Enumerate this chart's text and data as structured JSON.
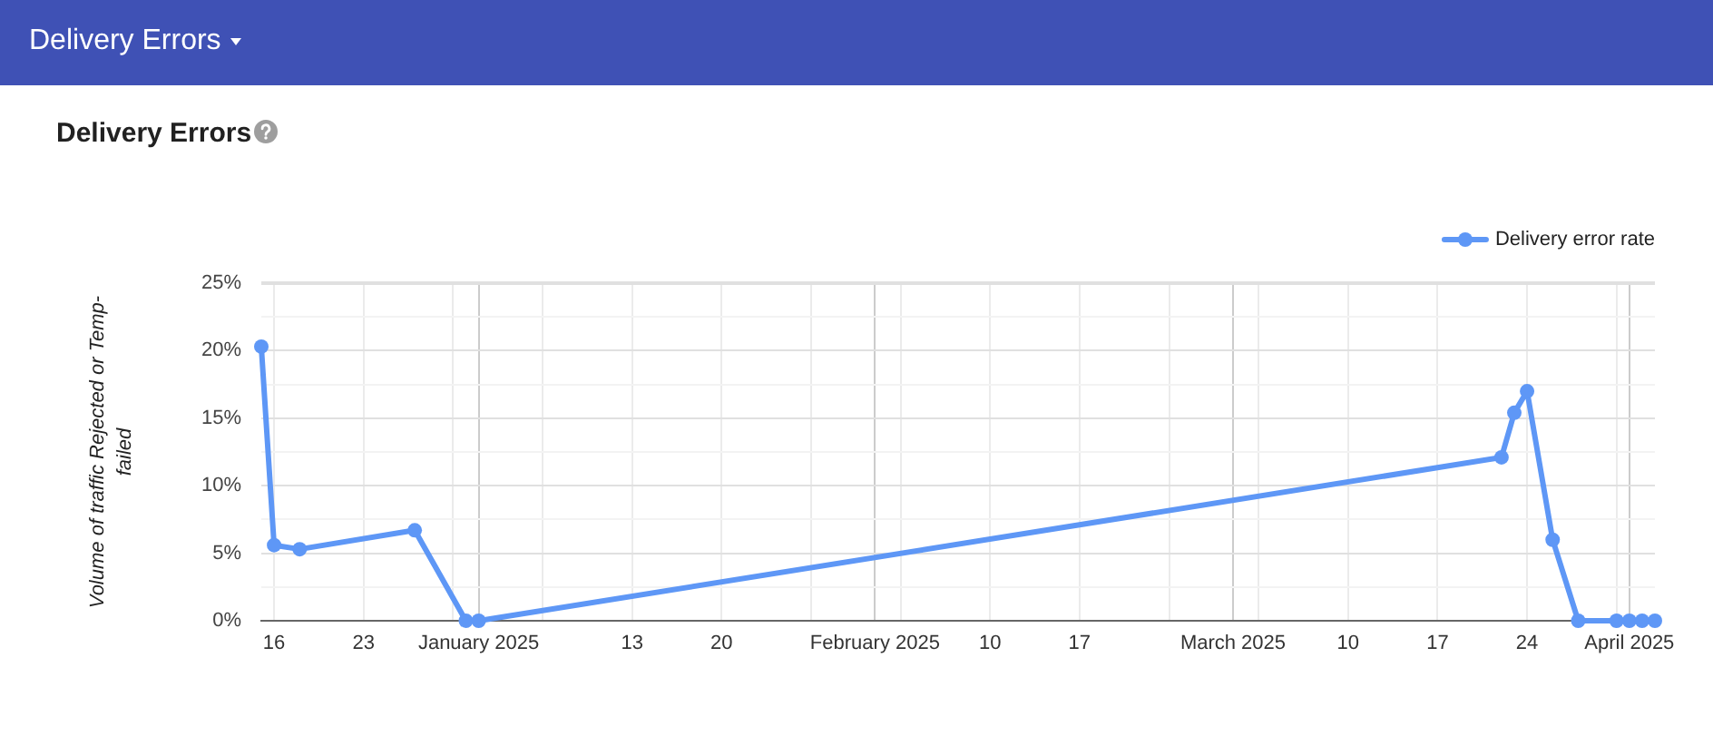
{
  "chart_data": {
    "type": "line",
    "title": "Delivery Errors",
    "annotations": [
      "Delivery Errors"
    ],
    "ylabel": "Volume of traffic Rejected or Temp-failed",
    "x": [
      "2024-12-15",
      "2024-12-16",
      "2024-12-18",
      "2024-12-27",
      "2024-12-31",
      "2025-01-01",
      "2025-03-22",
      "2025-03-23",
      "2025-03-24",
      "2025-03-26",
      "2025-03-28",
      "2025-03-31",
      "2025-04-01",
      "2025-04-02",
      "2025-04-03"
    ],
    "series": [
      {
        "name": "Delivery error rate",
        "color": "#5e97f6",
        "values": [
          20.3,
          5.6,
          5.3,
          6.7,
          0,
          0,
          12.1,
          15.4,
          17.0,
          6.0,
          0,
          0,
          0,
          0,
          0
        ]
      }
    ],
    "xlim": [
      "2024-12-15",
      "2025-04-03"
    ],
    "xticks": [
      {
        "value": "2024-12-16",
        "label": "16"
      },
      {
        "value": "2024-12-23",
        "label": "23"
      },
      {
        "value": "2024-12-30",
        "label": null
      },
      {
        "value": "2025-01-01",
        "label": "January 2025"
      },
      {
        "value": "2025-01-06",
        "label": null
      },
      {
        "value": "2025-01-13",
        "label": "13"
      },
      {
        "value": "2025-01-20",
        "label": "20"
      },
      {
        "value": "2025-01-27",
        "label": null
      },
      {
        "value": "2025-02-01",
        "label": "February 2025"
      },
      {
        "value": "2025-02-03",
        "label": null
      },
      {
        "value": "2025-02-10",
        "label": "10"
      },
      {
        "value": "2025-02-17",
        "label": "17"
      },
      {
        "value": "2025-02-24",
        "label": null
      },
      {
        "value": "2025-03-01",
        "label": "March 2025"
      },
      {
        "value": "2025-03-03",
        "label": null
      },
      {
        "value": "2025-03-10",
        "label": "10"
      },
      {
        "value": "2025-03-17",
        "label": "17"
      },
      {
        "value": "2025-03-24",
        "label": "24"
      },
      {
        "value": "2025-03-31",
        "label": null
      },
      {
        "value": "2025-04-01",
        "label": "April 2025"
      }
    ],
    "ylim": [
      0,
      25
    ],
    "yticks": [
      {
        "value": 0,
        "label": "0%"
      },
      {
        "value": 2.5,
        "label": null
      },
      {
        "value": 5,
        "label": "5%"
      },
      {
        "value": 7.5,
        "label": null
      },
      {
        "value": 10,
        "label": "10%"
      },
      {
        "value": 12.5,
        "label": null
      },
      {
        "value": 15,
        "label": "15%"
      },
      {
        "value": 17.5,
        "label": null
      },
      {
        "value": 20,
        "label": "20%"
      },
      {
        "value": 22.5,
        "label": null
      },
      {
        "value": 25,
        "label": "25%"
      }
    ],
    "grid": true,
    "legend": "top right",
    "marker": "circle",
    "line_style": "solid"
  }
}
